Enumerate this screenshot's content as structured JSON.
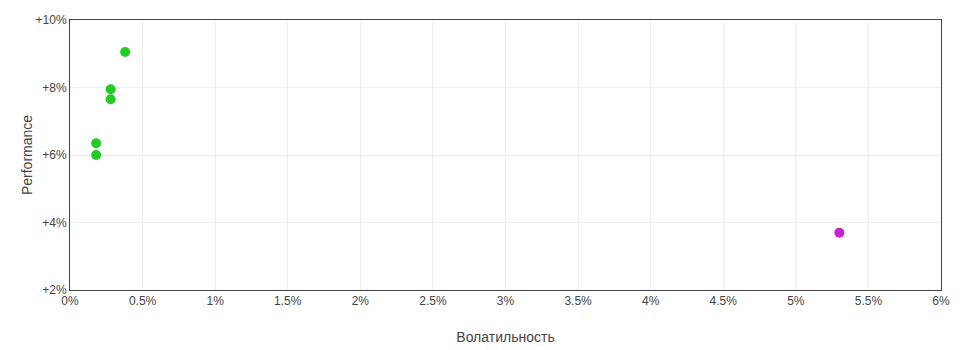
{
  "chart_data": {
    "type": "scatter",
    "xlabel": "Волатильность",
    "ylabel": "Performance",
    "xlim": [
      0.0,
      0.06
    ],
    "ylim": [
      0.02,
      0.1
    ],
    "xticks": [
      {
        "value": 0.0,
        "label": "0%"
      },
      {
        "value": 0.005,
        "label": "0.5%"
      },
      {
        "value": 0.01,
        "label": "1%"
      },
      {
        "value": 0.015,
        "label": "1.5%"
      },
      {
        "value": 0.02,
        "label": "2%"
      },
      {
        "value": 0.025,
        "label": "2.5%"
      },
      {
        "value": 0.03,
        "label": "3%"
      },
      {
        "value": 0.035,
        "label": "3.5%"
      },
      {
        "value": 0.04,
        "label": "4%"
      },
      {
        "value": 0.045,
        "label": "4.5%"
      },
      {
        "value": 0.05,
        "label": "5%"
      },
      {
        "value": 0.055,
        "label": "5.5%"
      },
      {
        "value": 0.06,
        "label": "6%"
      }
    ],
    "yticks": [
      {
        "value": 0.02,
        "label": "+2%"
      },
      {
        "value": 0.04,
        "label": "+4%"
      },
      {
        "value": 0.06,
        "label": "+6%"
      },
      {
        "value": 0.08,
        "label": "+8%"
      },
      {
        "value": 0.1,
        "label": "+10%"
      }
    ],
    "grid": true,
    "series": [
      {
        "color": "#22cc22",
        "x": [
          0.0038,
          0.0028,
          0.0028,
          0.0018,
          0.0018
        ],
        "values": [
          0.0905,
          0.0795,
          0.0765,
          0.0635,
          0.06
        ]
      },
      {
        "color": "#cc22cc",
        "x": [
          0.053
        ],
        "values": [
          0.037
        ]
      }
    ]
  }
}
